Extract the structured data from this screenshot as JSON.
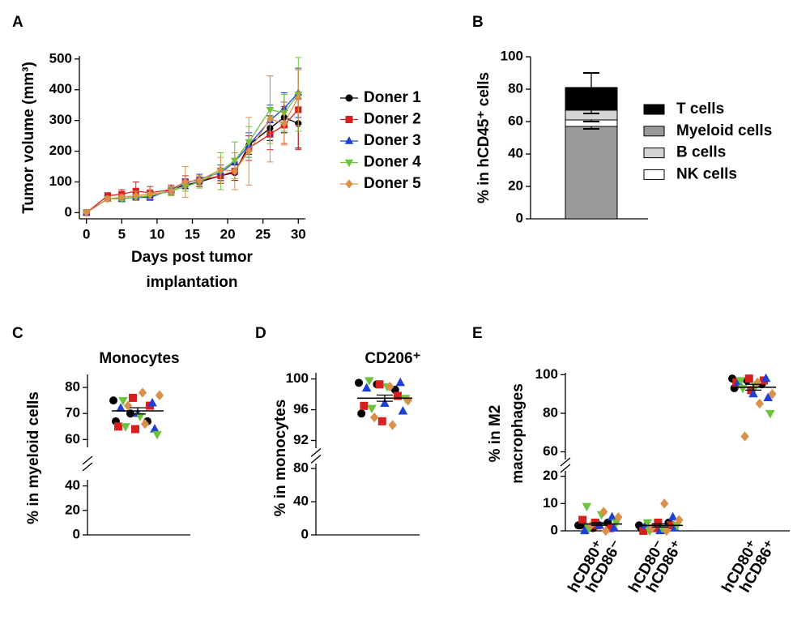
{
  "chart_data": [
    {
      "type": "line",
      "panel": "A",
      "ylabel": "Tumor volume (mm³)",
      "xlabel": [
        "Days post tumor",
        "implantation"
      ],
      "x": [
        0,
        3,
        5,
        7,
        9,
        12,
        14,
        16,
        19,
        21,
        23,
        26,
        28,
        30
      ],
      "xlim": [
        -1,
        31
      ],
      "xticks": [
        0,
        5,
        10,
        15,
        20,
        25,
        30
      ],
      "ylim": [
        -20,
        510
      ],
      "yticks": [
        0,
        100,
        200,
        300,
        400,
        500
      ],
      "series": [
        {
          "name": "Doner 1",
          "color": "#000000",
          "marker": "circle",
          "values": [
            0,
            45,
            45,
            50,
            50,
            75,
            90,
            100,
            120,
            130,
            220,
            275,
            310,
            290
          ],
          "errors": [
            0,
            8,
            8,
            8,
            8,
            10,
            12,
            15,
            20,
            25,
            30,
            40,
            50,
            80
          ]
        },
        {
          "name": "Doner 2",
          "color": "#d62020",
          "marker": "square",
          "values": [
            0,
            55,
            60,
            70,
            65,
            75,
            100,
            105,
            120,
            135,
            210,
            255,
            285,
            335
          ],
          "errors": [
            0,
            10,
            15,
            30,
            20,
            15,
            20,
            20,
            25,
            30,
            40,
            50,
            60,
            130
          ]
        },
        {
          "name": "Doner 3",
          "color": "#1f3fd6",
          "marker": "tri-up",
          "values": [
            0,
            45,
            45,
            50,
            50,
            75,
            95,
            110,
            130,
            165,
            220,
            300,
            340,
            390
          ],
          "errors": [
            0,
            8,
            10,
            10,
            10,
            10,
            15,
            15,
            25,
            30,
            40,
            50,
            50,
            80
          ]
        },
        {
          "name": "Doner 4",
          "color": "#6cc43c",
          "marker": "tri-down",
          "values": [
            0,
            45,
            45,
            50,
            55,
            70,
            85,
            100,
            135,
            170,
            230,
            335,
            325,
            385
          ],
          "errors": [
            0,
            8,
            10,
            10,
            10,
            12,
            15,
            20,
            60,
            60,
            50,
            110,
            60,
            120
          ]
        },
        {
          "name": "Doner 5",
          "color": "#d9904a",
          "marker": "diamond",
          "values": [
            0,
            45,
            50,
            55,
            60,
            70,
            100,
            105,
            140,
            135,
            200,
            305,
            290,
            375
          ],
          "errors": [
            0,
            8,
            10,
            15,
            15,
            15,
            50,
            15,
            40,
            60,
            110,
            140,
            70,
            90
          ]
        }
      ]
    },
    {
      "type": "stacked-bar",
      "panel": "B",
      "ylabel": "% in hCD45⁺ cells",
      "ylim": [
        0,
        100
      ],
      "yticks": [
        0,
        20,
        40,
        60,
        80,
        100
      ],
      "series": [
        {
          "name": "Myeloid cells",
          "color": "#9a9a9c",
          "value": 57,
          "error": 1.5
        },
        {
          "name": "NK cells",
          "color": "#ffffff",
          "value": 4,
          "error": 1
        },
        {
          "name": "B cells",
          "color": "#d4d4d4",
          "value": 6,
          "error": 2
        },
        {
          "name": "T cells",
          "color": "#000000",
          "value": 14,
          "error": 9
        }
      ]
    },
    {
      "type": "strip",
      "panel": "C",
      "title": "Monocytes",
      "ylabel": "% in myeloid cells",
      "categories": [
        null
      ],
      "y_segments": [
        {
          "ylim": [
            0,
            45
          ],
          "yticks": [
            0,
            20,
            40
          ]
        },
        {
          "ylim": [
            57,
            85
          ],
          "yticks": [
            60,
            70,
            80
          ]
        }
      ],
      "means": [
        71
      ],
      "sems": [
        1.2
      ],
      "series": [
        {
          "color": "#000000",
          "marker": "circle",
          "values": [
            [
              75,
              70,
              67,
              67
            ]
          ]
        },
        {
          "color": "#d62020",
          "marker": "square",
          "values": [
            [
              76,
              73,
              65,
              64
            ]
          ]
        },
        {
          "color": "#1f3fd6",
          "marker": "tri-up",
          "values": [
            [
              74,
              72,
              70,
              64
            ]
          ]
        },
        {
          "color": "#6cc43c",
          "marker": "tri-down",
          "values": [
            [
              75,
              69,
              62,
              65
            ]
          ]
        },
        {
          "color": "#d9904a",
          "marker": "diamond",
          "values": [
            [
              78,
              77,
              73,
              66
            ]
          ]
        }
      ]
    },
    {
      "type": "strip",
      "panel": "D",
      "title": "CD206⁺",
      "ylabel": "% in monocytes",
      "categories": [
        null
      ],
      "y_segments": [
        {
          "ylim": [
            0,
            86
          ],
          "yticks": [
            0,
            40,
            80
          ]
        },
        {
          "ylim": [
            91,
            100.8
          ],
          "yticks": [
            92,
            96,
            100
          ]
        }
      ],
      "means": [
        97.5
      ],
      "sems": [
        0.4
      ],
      "series": [
        {
          "color": "#000000",
          "marker": "circle",
          "values": [
            [
              99.5,
              99.3,
              98.6,
              95.5
            ]
          ]
        },
        {
          "color": "#d62020",
          "marker": "square",
          "values": [
            [
              99.3,
              97.8,
              96.5,
              94.5
            ]
          ]
        },
        {
          "color": "#1f3fd6",
          "marker": "tri-up",
          "values": [
            [
              99.5,
              98.8,
              96.8,
              95.8
            ]
          ]
        },
        {
          "color": "#6cc43c",
          "marker": "tri-down",
          "values": [
            [
              99.8,
              99.0,
              97.5,
              96.2
            ]
          ]
        },
        {
          "color": "#d9904a",
          "marker": "diamond",
          "values": [
            [
              99.0,
              97.2,
              95.0,
              94.0
            ]
          ]
        }
      ]
    },
    {
      "type": "strip",
      "panel": "E",
      "ylabel": [
        "% in M2",
        "macrophages"
      ],
      "categories": [
        [
          "hCD80⁺",
          "hCD86⁻"
        ],
        [
          "hCD80⁻",
          "hCD86⁺"
        ],
        [
          "hCD80⁺",
          "hCD86⁺"
        ]
      ],
      "y_segments": [
        {
          "ylim": [
            0,
            22
          ],
          "yticks": [
            0,
            10,
            20
          ]
        },
        {
          "ylim": [
            56,
            101
          ],
          "yticks": [
            60,
            80,
            100
          ]
        }
      ],
      "means": [
        2.5,
        2,
        93.5
      ],
      "sems": [
        0.5,
        0.6,
        1.5
      ],
      "series": [
        {
          "color": "#000000",
          "marker": "circle",
          "values": [
            [
              2,
              1,
              3,
              2
            ],
            [
              2,
              1,
              3,
              1
            ],
            [
              98,
              97,
              95,
              93
            ]
          ]
        },
        {
          "color": "#d62020",
          "marker": "square",
          "values": [
            [
              3,
              1,
              4,
              2
            ],
            [
              1,
              2,
              0,
              3
            ],
            [
              98,
              97,
              96,
              92
            ]
          ]
        },
        {
          "color": "#1f3fd6",
          "marker": "tri-up",
          "values": [
            [
              5,
              0,
              2,
              1
            ],
            [
              5,
              2,
              0,
              1
            ],
            [
              98,
              96,
              90,
              88
            ]
          ]
        },
        {
          "color": "#6cc43c",
          "marker": "tri-down",
          "values": [
            [
              9,
              6,
              3,
              1
            ],
            [
              3,
              1,
              2,
              0
            ],
            [
              97,
              94,
              80,
              93
            ]
          ]
        },
        {
          "color": "#d9904a",
          "marker": "diamond",
          "values": [
            [
              7,
              5,
              2,
              0
            ],
            [
              10,
              4,
              1,
              0
            ],
            [
              96,
              90,
              68,
              85
            ]
          ]
        }
      ]
    }
  ]
}
